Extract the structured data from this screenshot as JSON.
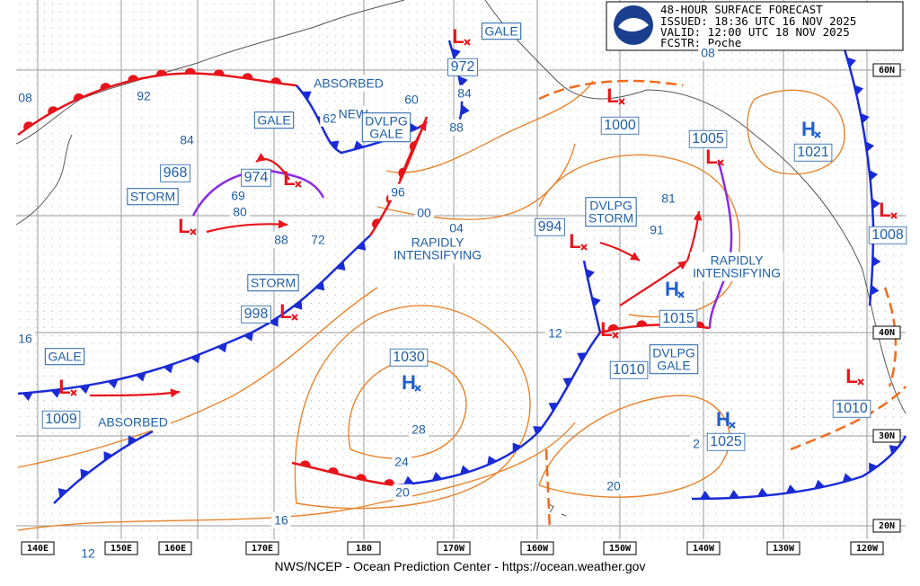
{
  "header": {
    "title": "48-HOUR SURFACE FORECAST",
    "issued": "ISSUED: 18:36 UTC 16 NOV 2025",
    "valid": "VALID:  12:00 UTC 18 NOV 2025",
    "forecaster": "FCSTR:  Poche"
  },
  "footer": "NWS/NCEP - Ocean Prediction Center - https://ocean.weather.gov",
  "longitude_labels": [
    "140E",
    "150E",
    "160E",
    "170E",
    "180",
    "170W",
    "160W",
    "150W",
    "140W",
    "130W",
    "120W"
  ],
  "latitude_labels": [
    "60N",
    "40N",
    "30N",
    "20N"
  ],
  "centers": [
    {
      "type": "L",
      "pressure": "972",
      "color": "#e8141b"
    },
    {
      "type": "L",
      "pressure": "1000",
      "color": "#e8141b"
    },
    {
      "type": "L",
      "pressure": "1005",
      "color": "#e8141b"
    },
    {
      "type": "H",
      "pressure": "1021",
      "color": "#1f5fd0"
    },
    {
      "type": "L",
      "pressure": "968",
      "color": "#e8141b"
    },
    {
      "type": "L",
      "pressure": "974",
      "color": "#e8141b"
    },
    {
      "type": "L",
      "pressure": "998",
      "color": "#e8141b"
    },
    {
      "type": "L",
      "pressure": "1009",
      "color": "#e8141b"
    },
    {
      "type": "L",
      "pressure": "994",
      "color": "#e8141b"
    },
    {
      "type": "H",
      "pressure": "1015",
      "color": "#1f5fd0"
    },
    {
      "type": "L",
      "pressure": "1010",
      "color": "#e8141b"
    },
    {
      "type": "H",
      "pressure": "1030",
      "color": "#1f5fd0"
    },
    {
      "type": "H",
      "pressure": "1025",
      "color": "#1f5fd0"
    },
    {
      "type": "L",
      "pressure": "1010",
      "color": "#e8141b"
    },
    {
      "type": "L",
      "pressure": "1008",
      "color": "#e8141b"
    }
  ],
  "labels": [
    "GALE",
    "ABSORBED",
    "60",
    "84",
    "62",
    "NEW",
    [
      "DVLPG",
      "GALE"
    ],
    "88",
    "GALE",
    "84",
    "STORM",
    "69",
    "80",
    "88",
    "72",
    "96",
    "00",
    "04",
    [
      "RAPIDLY",
      "INTENSIFYING"
    ],
    "STORM",
    "92",
    "08",
    "16",
    "GALE",
    "ABSORBED",
    [
      "DVLPG",
      "STORM"
    ],
    "81",
    "91",
    [
      "RAPIDLY",
      "INTENSIFYING"
    ],
    "12",
    [
      "DVLPG",
      "GALE"
    ],
    "28",
    "24",
    "20",
    "20",
    "16",
    "12",
    "2",
    "08"
  ]
}
